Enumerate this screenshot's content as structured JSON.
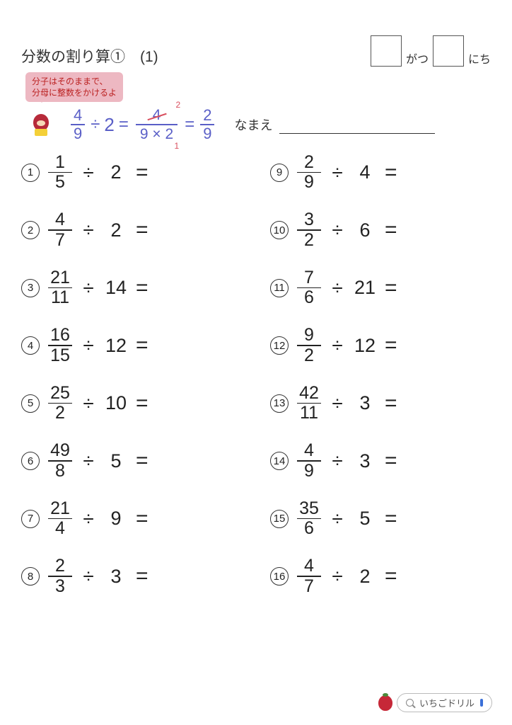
{
  "title": "分数の割り算①　(1)",
  "date": {
    "month_label": "がつ",
    "day_label": "にち"
  },
  "tip": {
    "line1": "分子はそのままで、",
    "line2": "分母に整数をかけるよ"
  },
  "example": {
    "frac1_n": "4",
    "frac1_d": "9",
    "op1": "÷",
    "term": "2",
    "eq1": "=",
    "work_n": "4",
    "work_d": "9 × 2",
    "cancel_top": "2",
    "cancel_bot": "1",
    "eq2": "=",
    "res_n": "2",
    "res_d": "9"
  },
  "name_label": "なまえ",
  "left": [
    {
      "i": "1",
      "n": "1",
      "d": "5",
      "t": "2"
    },
    {
      "i": "2",
      "n": "4",
      "d": "7",
      "t": "2"
    },
    {
      "i": "3",
      "n": "21",
      "d": "11",
      "t": "14"
    },
    {
      "i": "4",
      "n": "16",
      "d": "15",
      "t": "12"
    },
    {
      "i": "5",
      "n": "25",
      "d": "2",
      "t": "10"
    },
    {
      "i": "6",
      "n": "49",
      "d": "8",
      "t": "5"
    },
    {
      "i": "7",
      "n": "21",
      "d": "4",
      "t": "9"
    },
    {
      "i": "8",
      "n": "2",
      "d": "3",
      "t": "3"
    }
  ],
  "right": [
    {
      "i": "9",
      "n": "2",
      "d": "9",
      "t": "4"
    },
    {
      "i": "10",
      "n": "3",
      "d": "2",
      "t": "6"
    },
    {
      "i": "11",
      "n": "7",
      "d": "6",
      "t": "21"
    },
    {
      "i": "12",
      "n": "9",
      "d": "2",
      "t": "12"
    },
    {
      "i": "13",
      "n": "42",
      "d": "11",
      "t": "3"
    },
    {
      "i": "14",
      "n": "4",
      "d": "9",
      "t": "3"
    },
    {
      "i": "15",
      "n": "35",
      "d": "6",
      "t": "5"
    },
    {
      "i": "16",
      "n": "4",
      "d": "7",
      "t": "2"
    }
  ],
  "symbols": {
    "div": "÷",
    "eq": "="
  },
  "footer_text": "いちごドリル"
}
